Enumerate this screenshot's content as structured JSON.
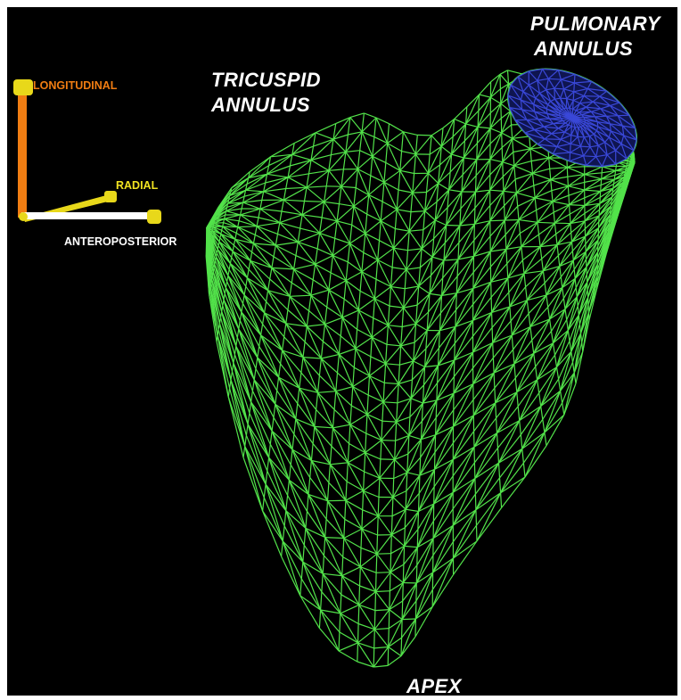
{
  "labels": {
    "tricuspid": [
      "TRICUSPID",
      "ANNULUS"
    ],
    "pulmonary": [
      "PULMONARY",
      "ANNULUS"
    ],
    "apex": "APEX"
  },
  "axes": {
    "longitudinal": {
      "label": "LONGITUDINAL",
      "color": "#f07d12"
    },
    "radial": {
      "label": "RADIAL",
      "color": "#f0e221"
    },
    "anteroposterior": {
      "label": "ANTEROPOSTERIOR",
      "color": "#ffffff"
    }
  },
  "colors": {
    "background": "#000000",
    "mesh": "#52e24a",
    "annulus_mesh": "#3a48d8",
    "handle": "#e8d81a"
  }
}
